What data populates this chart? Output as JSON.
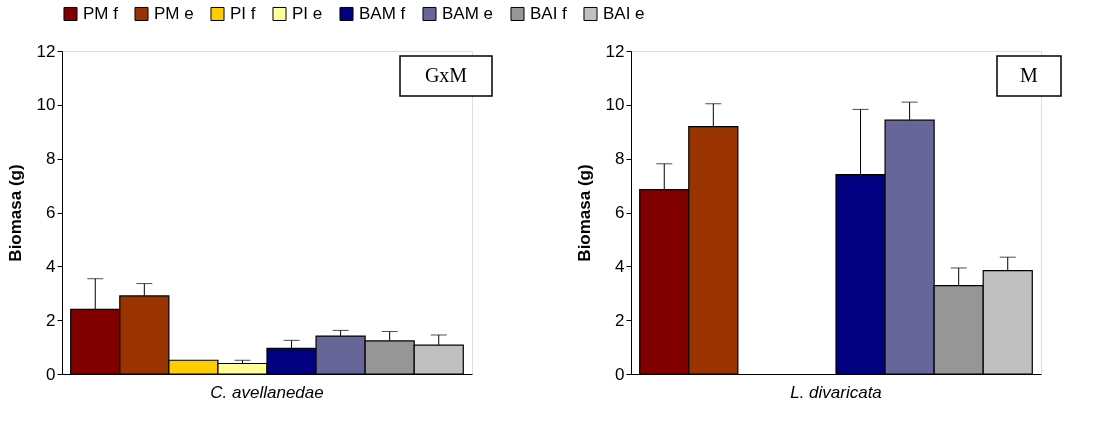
{
  "chart_data": [
    {
      "type": "bar",
      "categories": [
        "C. avellanedae"
      ],
      "ylabel": "Biomasa (g)",
      "ylim": [
        0,
        12
      ],
      "yticks": [
        0,
        2,
        4,
        6,
        8,
        10,
        12
      ],
      "grid": false,
      "legend": "top",
      "annotations": [
        "GxM"
      ],
      "series": [
        {
          "name": "PM f",
          "color": "#800000",
          "values": [
            2.4
          ],
          "errors": [
            [
              2.4,
              3.54
            ]
          ]
        },
        {
          "name": "PM e",
          "color": "#993300",
          "values": [
            2.9
          ],
          "errors": [
            [
              2.9,
              3.36
            ]
          ]
        },
        {
          "name": "PI f",
          "color": "#ffcc00",
          "values": [
            0.51
          ],
          "errors": [
            null
          ]
        },
        {
          "name": "PI e",
          "color": "#ffff99",
          "values": [
            0.39
          ],
          "errors": [
            [
              0.39,
              0.51
            ]
          ]
        },
        {
          "name": "BAM f",
          "color": "#000080",
          "values": [
            0.95
          ],
          "errors": [
            [
              0.95,
              1.25
            ]
          ]
        },
        {
          "name": "BAM e",
          "color": "#666699",
          "values": [
            1.41
          ],
          "errors": [
            [
              1.41,
              1.62
            ]
          ]
        },
        {
          "name": "BAI f",
          "color": "#969696",
          "values": [
            1.23
          ],
          "errors": [
            [
              1.23,
              1.58
            ]
          ]
        },
        {
          "name": "BAI e",
          "color": "#c0c0c0",
          "values": [
            1.07
          ],
          "errors": [
            [
              1.07,
              1.45
            ]
          ]
        }
      ]
    },
    {
      "type": "bar",
      "categories": [
        "L. divaricata"
      ],
      "ylabel": "Biomasa (g)",
      "ylim": [
        0,
        12
      ],
      "yticks": [
        0,
        2,
        4,
        6,
        8,
        10,
        12
      ],
      "grid": false,
      "annotations": [
        "M"
      ],
      "series": [
        {
          "color": "#800000",
          "values": [
            6.85
          ],
          "errors": [
            [
              6.85,
              7.81
            ]
          ]
        },
        {
          "color": "#993300",
          "values": [
            9.19
          ],
          "errors": [
            [
              9.19,
              10.04
            ]
          ]
        },
        {
          "color": "#ffcc00",
          "values": [
            null
          ],
          "errors": [
            null
          ]
        },
        {
          "color": "#ffff99",
          "values": [
            null
          ],
          "errors": [
            null
          ]
        },
        {
          "color": "#000080",
          "values": [
            7.41
          ],
          "errors": [
            [
              7.41,
              9.83
            ]
          ]
        },
        {
          "color": "#666699",
          "values": [
            9.43
          ],
          "errors": [
            [
              9.43,
              10.1
            ]
          ]
        },
        {
          "color": "#969696",
          "values": [
            3.28
          ],
          "errors": [
            [
              3.28,
              3.94
            ]
          ]
        },
        {
          "color": "#c0c0c0",
          "values": [
            3.84
          ],
          "errors": [
            [
              3.84,
              4.34
            ]
          ]
        }
      ]
    }
  ]
}
